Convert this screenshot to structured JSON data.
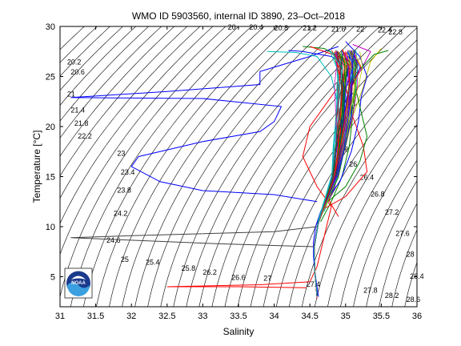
{
  "chart_data": {
    "type": "line",
    "title": "WMO ID 5903560, internal ID 3890, 23–Oct–2018",
    "xlabel": "Salinity",
    "ylabel": "Temperature [°C]",
    "xlim": [
      31,
      36
    ],
    "ylim": [
      2,
      30
    ],
    "xticks": [
      31,
      31.5,
      32,
      32.5,
      33,
      33.5,
      34,
      34.5,
      35,
      35.5,
      36
    ],
    "yticks": [
      5,
      10,
      15,
      20,
      25,
      30
    ],
    "grid": false,
    "legend": "none",
    "density_contour_labels": [
      "20",
      "20.4",
      "20.8",
      "21.2",
      "21.6",
      "22",
      "22.4",
      "22.8",
      "20.2",
      "20.6",
      "21",
      "21.4",
      "21.8",
      "22.2",
      "23",
      "23.4",
      "23.8",
      "24.2",
      "24.6",
      "25",
      "25.4",
      "25.8",
      "26.2",
      "26.6",
      "27",
      "27.4",
      "27.8",
      "28.2",
      "28.6",
      "25.6",
      "26",
      "26.4",
      "26.8",
      "27.2",
      "27.6",
      "28",
      "28.4"
    ],
    "logo_text": "NOAA",
    "profile_colors": [
      "#0000ff",
      "#008000",
      "#ff0000",
      "#00bfbf",
      "#bf00bf",
      "#bfbf00",
      "#404040"
    ],
    "series": [
      {
        "color": "#0000ff",
        "points": [
          [
            34.62,
            3.0
          ],
          [
            34.6,
            4.0
          ],
          [
            34.57,
            5.5
          ],
          [
            34.55,
            7.0
          ],
          [
            34.55,
            8.5
          ],
          [
            34.58,
            10.0
          ],
          [
            34.65,
            11.5
          ],
          [
            34.75,
            13.0
          ],
          [
            34.85,
            15.0
          ],
          [
            34.9,
            17.0
          ],
          [
            34.95,
            20.0
          ],
          [
            35.0,
            22.0
          ],
          [
            35.05,
            24.0
          ],
          [
            35.02,
            26.0
          ],
          [
            34.8,
            27.0
          ],
          [
            34.4,
            27.5
          ],
          [
            34.2,
            27.6
          ]
        ]
      },
      {
        "color": "#0000ff",
        "points": [
          [
            34.6,
            12.5
          ],
          [
            34.0,
            13.2
          ],
          [
            33.0,
            13.6
          ],
          [
            32.4,
            14.5
          ],
          [
            32.0,
            16.0
          ],
          [
            32.1,
            17.0
          ],
          [
            33.0,
            18.5
          ],
          [
            33.8,
            19.5
          ],
          [
            34.0,
            20.5
          ],
          [
            34.1,
            22.0
          ],
          [
            33.0,
            22.8
          ],
          [
            31.15,
            22.9
          ],
          [
            32.5,
            23.5
          ],
          [
            33.8,
            24.2
          ],
          [
            33.8,
            25.5
          ],
          [
            34.5,
            27.0
          ],
          [
            34.9,
            28.0
          ]
        ]
      },
      {
        "color": "#404040",
        "points": [
          [
            34.55,
            8.0
          ],
          [
            33.2,
            8.3
          ],
          [
            31.15,
            8.9
          ],
          [
            32.0,
            9.1
          ],
          [
            34.0,
            9.5
          ],
          [
            34.6,
            10.0
          ]
        ]
      },
      {
        "color": "#ff0000",
        "points": [
          [
            34.45,
            3.9
          ],
          [
            33.5,
            4.0
          ],
          [
            32.5,
            4.0
          ],
          [
            33.8,
            4.2
          ],
          [
            34.5,
            4.5
          ],
          [
            34.6,
            6.0
          ],
          [
            34.7,
            9.0
          ],
          [
            34.8,
            12.0
          ],
          [
            34.6,
            14.0
          ],
          [
            34.4,
            17.0
          ],
          [
            34.5,
            20.0
          ],
          [
            34.9,
            24.0
          ],
          [
            35.1,
            26.0
          ],
          [
            35.0,
            27.5
          ]
        ]
      },
      {
        "color": "#008000",
        "points": [
          [
            34.65,
            10.5
          ],
          [
            34.8,
            12.5
          ],
          [
            34.95,
            15.0
          ],
          [
            35.05,
            18.0
          ],
          [
            35.1,
            21.0
          ],
          [
            35.15,
            24.0
          ],
          [
            35.05,
            26.5
          ],
          [
            34.7,
            27.8
          ],
          [
            34.4,
            28.0
          ]
        ]
      },
      {
        "color": "#bf00bf",
        "points": [
          [
            34.65,
            11.0
          ],
          [
            34.85,
            14.0
          ],
          [
            34.95,
            17.0
          ],
          [
            35.0,
            20.0
          ],
          [
            35.05,
            23.5
          ],
          [
            35.2,
            25.5
          ],
          [
            35.35,
            27.5
          ],
          [
            35.1,
            28.2
          ]
        ]
      },
      {
        "color": "#00bfbf",
        "points": [
          [
            34.7,
            11.5
          ],
          [
            34.8,
            13.5
          ],
          [
            34.9,
            16.0
          ],
          [
            34.95,
            19.0
          ],
          [
            34.9,
            22.0
          ],
          [
            34.8,
            25.0
          ],
          [
            34.6,
            27.0
          ],
          [
            34.3,
            27.4
          ],
          [
            33.9,
            27.5
          ]
        ]
      },
      {
        "color": "#bfbf00",
        "points": [
          [
            34.72,
            12.0
          ],
          [
            34.88,
            15.0
          ],
          [
            35.0,
            18.0
          ],
          [
            35.1,
            21.0
          ],
          [
            35.25,
            24.0
          ],
          [
            35.35,
            26.5
          ],
          [
            35.5,
            27.8
          ]
        ]
      },
      {
        "color": "#ff0000",
        "points": [
          [
            34.7,
            11.8
          ],
          [
            35.0,
            13.0
          ],
          [
            35.3,
            15.5
          ],
          [
            35.25,
            18.0
          ],
          [
            35.1,
            21.0
          ],
          [
            35.0,
            24.0
          ],
          [
            34.9,
            27.0
          ],
          [
            34.5,
            28.0
          ]
        ]
      },
      {
        "color": "#0000ff",
        "points": [
          [
            34.68,
            12.2
          ],
          [
            34.92,
            14.5
          ],
          [
            35.08,
            17.5
          ],
          [
            35.18,
            20.5
          ],
          [
            35.22,
            23.0
          ],
          [
            35.3,
            25.0
          ],
          [
            35.2,
            27.0
          ],
          [
            35.0,
            28.5
          ]
        ]
      },
      {
        "color": "#008000",
        "points": [
          [
            34.75,
            12.5
          ],
          [
            35.0,
            14.0
          ],
          [
            35.2,
            16.5
          ],
          [
            35.3,
            19.0
          ],
          [
            35.2,
            22.0
          ],
          [
            35.1,
            25.0
          ],
          [
            35.4,
            27.2
          ],
          [
            35.6,
            27.6
          ]
        ]
      },
      {
        "color": "#ff0000",
        "points": [
          [
            34.9,
            11.0
          ],
          [
            34.8,
            12.2
          ],
          [
            34.75,
            13.0
          ]
        ]
      }
    ]
  }
}
